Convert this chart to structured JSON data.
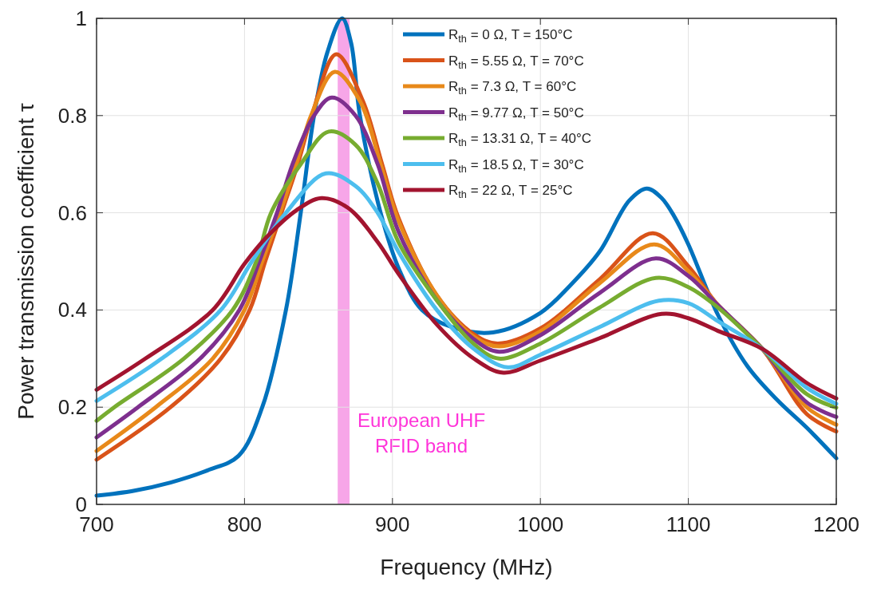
{
  "chart_data": {
    "type": "line",
    "xlabel": "Frequency (MHz)",
    "ylabel": "Power transmission coefficient τ",
    "xlim": [
      700,
      1200
    ],
    "xticks": [
      700,
      800,
      900,
      1000,
      1100,
      1200
    ],
    "ylim": [
      0,
      1
    ],
    "yticks": [
      0,
      0.2,
      0.4,
      0.6,
      0.8,
      1
    ],
    "grid": true,
    "legend": "top right",
    "line_style": "solid",
    "marker": "none",
    "bands": [
      {
        "axis": "x",
        "from": 863,
        "to": 871,
        "color": "#f7a6e8",
        "label": "European UHF\nRFID band"
      }
    ],
    "series": [
      {
        "name": "R$_{th}$ = 0 Ω, T = 150°C",
        "color": "#0072bd",
        "x": [
          700,
          725,
          750,
          775,
          796,
          812,
          828,
          838,
          847,
          856,
          866,
          872,
          878,
          892,
          905,
          920,
          940,
          968,
          1000,
          1020,
          1040,
          1060,
          1072,
          1082,
          1090,
          1100,
          1120,
          1140,
          1160,
          1180,
          1200
        ],
        "values": [
          0.018,
          0.028,
          0.045,
          0.07,
          0.1,
          0.2,
          0.4,
          0.6,
          0.8,
          0.93,
          1.0,
          0.95,
          0.8,
          0.6,
          0.48,
          0.4,
          0.365,
          0.354,
          0.394,
          0.45,
          0.52,
          0.625,
          0.65,
          0.63,
          0.595,
          0.535,
          0.39,
          0.284,
          0.215,
          0.158,
          0.095
        ]
      },
      {
        "name": "R$_{th}$ = 5.55 Ω, T = 70°C",
        "color": "#d95319",
        "x": [
          700,
          750,
          784,
          803.5,
          814,
          825,
          836,
          845.5,
          862,
          880,
          893,
          904,
          930,
          955,
          971,
          1000,
          1040,
          1076,
          1100,
          1120,
          1150,
          1180,
          1200
        ],
        "values": [
          0.092,
          0.2,
          0.3,
          0.4,
          0.5,
          0.6,
          0.7,
          0.8,
          0.926,
          0.83,
          0.7,
          0.59,
          0.43,
          0.35,
          0.331,
          0.362,
          0.463,
          0.558,
          0.49,
          0.41,
          0.32,
          0.186,
          0.15
        ]
      },
      {
        "name": "R$_{th}$ = 7.3 Ω, T = 60°C",
        "color": "#e8891a",
        "x": [
          700,
          740,
          778.5,
          800,
          812,
          824,
          835,
          845,
          861,
          878,
          892,
          904,
          930,
          955,
          972,
          1000,
          1040,
          1077,
          1100,
          1120,
          1150,
          1180,
          1200
        ],
        "values": [
          0.11,
          0.2,
          0.3,
          0.4,
          0.5,
          0.6,
          0.7,
          0.8,
          0.89,
          0.83,
          0.7,
          0.584,
          0.43,
          0.345,
          0.325,
          0.356,
          0.455,
          0.535,
          0.48,
          0.41,
          0.32,
          0.2,
          0.164
        ]
      },
      {
        "name": "R$_{th}$ = 9.77 Ω, T = 50°C",
        "color": "#7e2f8e",
        "x": [
          700,
          728,
          770,
          796.5,
          810,
          822,
          832.5,
          847,
          859,
          875,
          890,
          904,
          930,
          955,
          972,
          1000,
          1040,
          1078,
          1100,
          1120,
          1150,
          1180,
          1200
        ],
        "values": [
          0.138,
          0.2,
          0.3,
          0.4,
          0.5,
          0.6,
          0.7,
          0.8,
          0.837,
          0.8,
          0.7,
          0.562,
          0.42,
          0.34,
          0.314,
          0.348,
          0.435,
          0.506,
          0.47,
          0.41,
          0.32,
          0.21,
          0.18
        ]
      },
      {
        "name": "R$_{th}$ = 13.31 Ω, T = 40°C",
        "color": "#77ac30",
        "x": [
          700,
          712,
          759,
          792,
          808,
          818,
          838,
          857,
          875,
          890,
          904,
          930,
          955,
          972,
          1000,
          1040,
          1078,
          1100,
          1120,
          1150,
          1180,
          1200
        ],
        "values": [
          0.172,
          0.2,
          0.3,
          0.4,
          0.5,
          0.6,
          0.7,
          0.767,
          0.74,
          0.66,
          0.54,
          0.42,
          0.33,
          0.3,
          0.331,
          0.405,
          0.466,
          0.447,
          0.405,
          0.32,
          0.227,
          0.199
        ]
      },
      {
        "name": "R$_{th}$ = 18.5 Ω, T = 30°C",
        "color": "#4dbeee",
        "x": [
          700,
          744,
          784,
          805,
          828,
          855,
          875,
          890,
          904,
          930,
          955,
          978,
          1000,
          1040,
          1080,
          1100,
          1120,
          1150,
          1180,
          1200
        ],
        "values": [
          0.213,
          0.3,
          0.4,
          0.5,
          0.6,
          0.681,
          0.655,
          0.6,
          0.52,
          0.4,
          0.32,
          0.282,
          0.308,
          0.365,
          0.419,
          0.414,
          0.377,
          0.32,
          0.24,
          0.207
        ]
      },
      {
        "name": "R$_{th}$ = 22 Ω, T = 25°C",
        "color": "#a2142f",
        "x": [
          700,
          733,
          778.5,
          800,
          815,
          835,
          852,
          870,
          890,
          904,
          930,
          955,
          975,
          1000,
          1040,
          1082,
          1100,
          1120,
          1150,
          1180,
          1200
        ],
        "values": [
          0.236,
          0.3,
          0.4,
          0.495,
          0.55,
          0.605,
          0.63,
          0.61,
          0.54,
          0.475,
          0.37,
          0.3,
          0.271,
          0.296,
          0.342,
          0.392,
          0.383,
          0.357,
          0.32,
          0.25,
          0.218
        ]
      }
    ]
  }
}
